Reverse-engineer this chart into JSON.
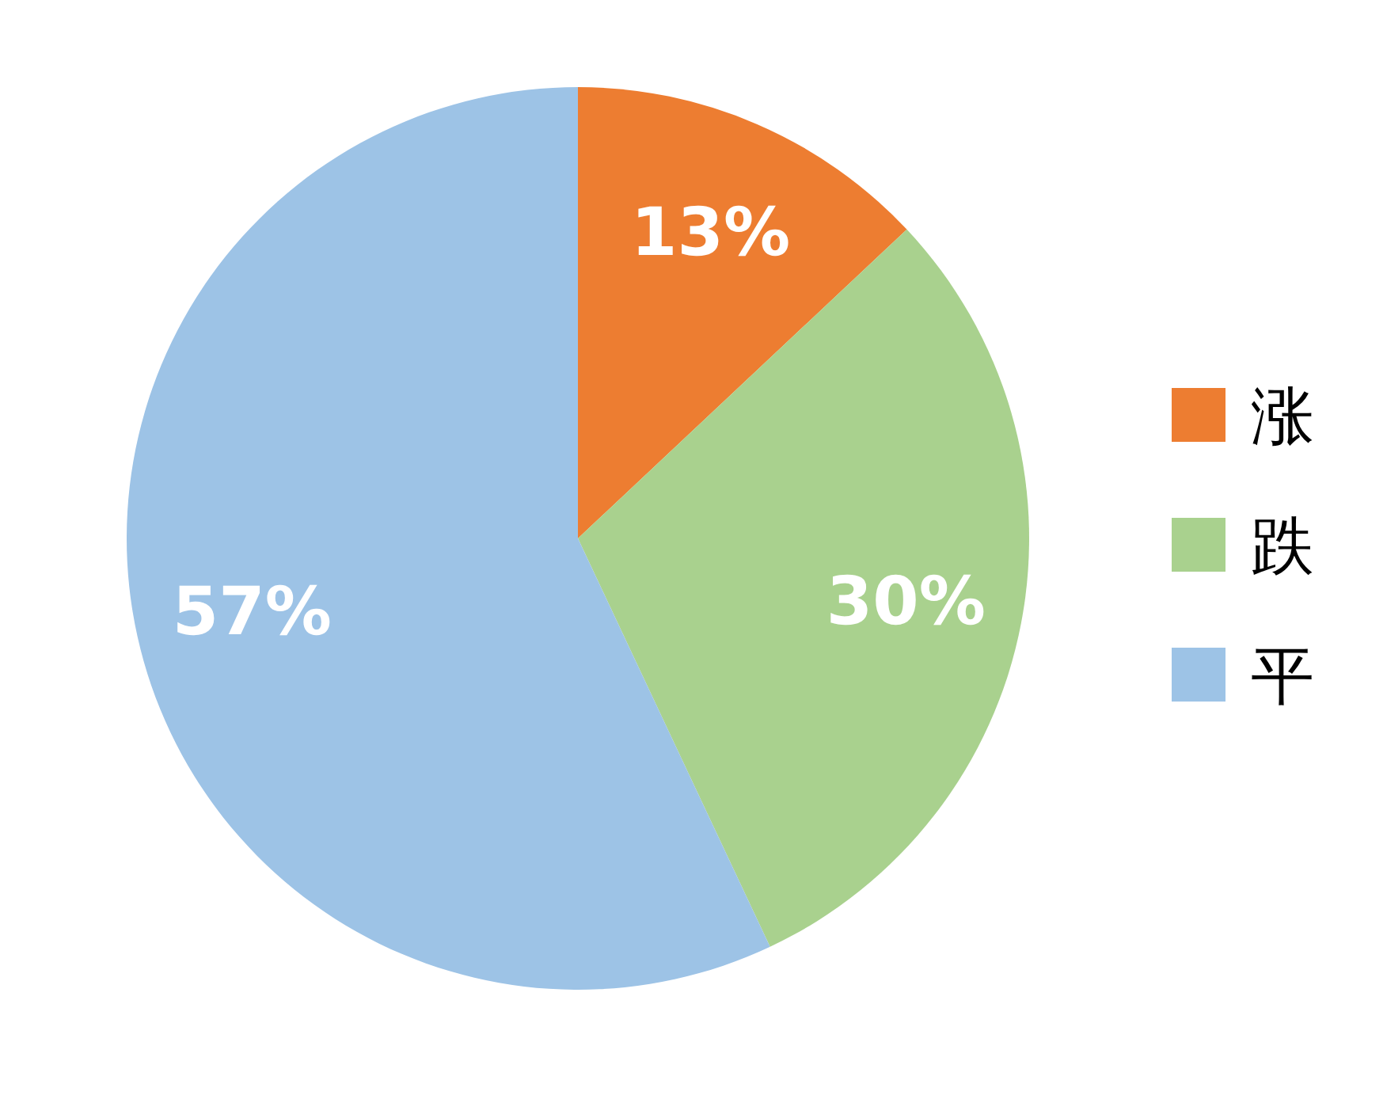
{
  "chart_data": {
    "type": "pie",
    "categories": [
      "涨",
      "跌",
      "平"
    ],
    "values": [
      13,
      30,
      57
    ],
    "colors": [
      "#ed7d31",
      "#a9d18e",
      "#9dc3e6"
    ],
    "value_labels": [
      "13%",
      "30%",
      "57%"
    ],
    "legend": "right"
  }
}
